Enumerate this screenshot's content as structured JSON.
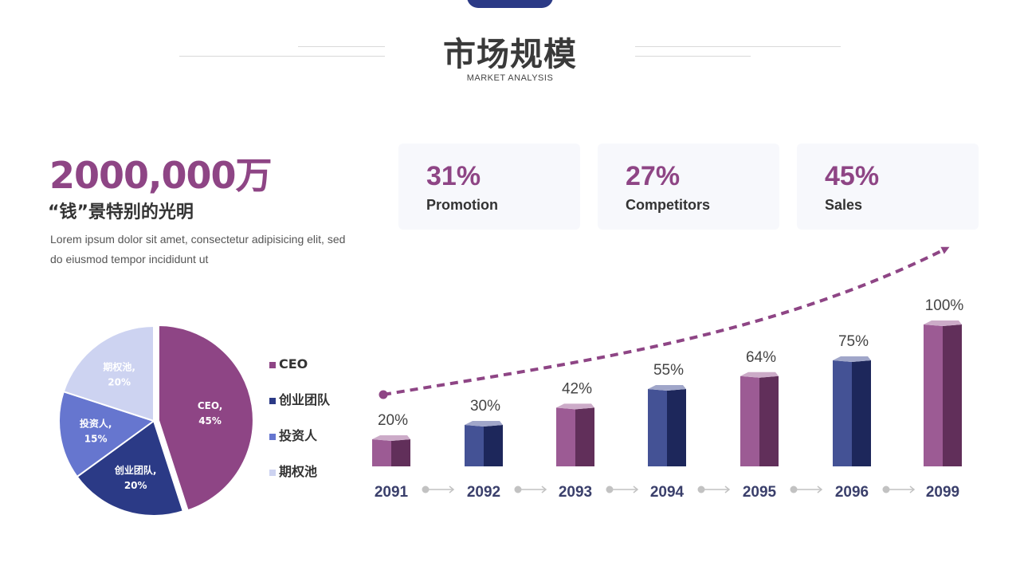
{
  "header": {
    "title": "市场规模",
    "subtitle": "MARKET ANALYSIS"
  },
  "hero": {
    "number": "2000,000万",
    "tagline": "“钱”景特别的光明",
    "description": "Lorem ipsum dolor sit amet, consectetur adipisicing elit, sed do eiusmod tempor incididunt ut"
  },
  "cards": [
    {
      "percent": "31%",
      "label": "Promotion"
    },
    {
      "percent": "27%",
      "label": "Competitors"
    },
    {
      "percent": "45%",
      "label": "Sales"
    }
  ],
  "colors": {
    "purple": "#8e4585",
    "navy": "#2b3a86",
    "blue": "#6676cf",
    "lavender": "#cdd3f1",
    "connector": "#c2c2c2"
  },
  "chart_data": [
    {
      "type": "pie",
      "slices": [
        {
          "name": "CEO",
          "value": 45,
          "label_name": "CEO,",
          "label_value": "45%",
          "color": "#8e4585"
        },
        {
          "name": "创业团队",
          "value": 20,
          "label_name": "创业团队,",
          "label_value": "20%",
          "color": "#2b3a86"
        },
        {
          "name": "投资人",
          "value": 15,
          "label_name": "投资人,",
          "label_value": "15%",
          "color": "#6676cf"
        },
        {
          "name": "期权池",
          "value": 20,
          "label_name": "期权池,",
          "label_value": "20%",
          "color": "#cdd3f1"
        }
      ],
      "legend_position": "right"
    },
    {
      "type": "bar",
      "categories": [
        "2091",
        "2092",
        "2093",
        "2094",
        "2095",
        "2096",
        "2099"
      ],
      "values": [
        20,
        30,
        42,
        55,
        64,
        75,
        100
      ],
      "value_labels": [
        "20%",
        "30%",
        "42%",
        "55%",
        "64%",
        "75%",
        "100%"
      ],
      "colors": [
        "#8e4585",
        "#2b3a86",
        "#8e4585",
        "#2b3a86",
        "#8e4585",
        "#2b3a86",
        "#8e4585"
      ],
      "style": "3d",
      "trend_arrow": "dashed"
    }
  ]
}
